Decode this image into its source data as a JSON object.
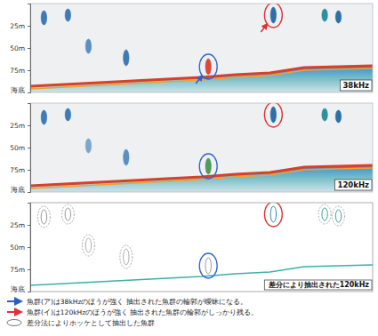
{
  "chart_data": [
    {
      "type": "echogram",
      "title": "38kHz",
      "xlim": [
        0,
        100
      ],
      "ylim": [
        0,
        100
      ],
      "tick_labels": "y",
      "yticks": [
        {
          "value": 25,
          "label": "25m"
        },
        {
          "value": 50,
          "label": "50m"
        },
        {
          "value": 75,
          "label": "75m"
        },
        {
          "value": 100,
          "label": "海底"
        }
      ],
      "x": [
        0,
        10,
        20,
        30,
        40,
        50,
        60,
        70,
        80,
        90,
        100
      ],
      "seabed": [
        93,
        91,
        89,
        87,
        85,
        83,
        80,
        78,
        72,
        71,
        70
      ],
      "schools": [
        {
          "x": 4,
          "top": 8,
          "bottom": 24,
          "color": "#3d7ab8"
        },
        {
          "x": 11,
          "top": 6,
          "bottom": 20,
          "color": "#3d7ab8"
        },
        {
          "x": 17,
          "top": 40,
          "bottom": 56,
          "color": "#5a8fc4"
        },
        {
          "x": 28,
          "top": 52,
          "bottom": 70,
          "color": "#3d7ab8"
        },
        {
          "x": 52,
          "top": 62,
          "bottom": 80,
          "color": "#d84a3a"
        },
        {
          "x": 71,
          "top": 4,
          "bottom": 22,
          "color": "#2f6ea8"
        },
        {
          "x": 86,
          "top": 6,
          "bottom": 20,
          "color": "#2f8f9a"
        },
        {
          "x": 90,
          "top": 8,
          "bottom": 22,
          "color": "#2f6ea8"
        }
      ]
    },
    {
      "type": "echogram",
      "title": "120kHz",
      "xlim": [
        0,
        100
      ],
      "ylim": [
        0,
        100
      ],
      "tick_labels": "y",
      "yticks": [
        {
          "value": 25,
          "label": "25m"
        },
        {
          "value": 50,
          "label": "50m"
        },
        {
          "value": 75,
          "label": "75m"
        },
        {
          "value": 100,
          "label": "海底"
        }
      ],
      "x": [
        0,
        10,
        20,
        30,
        40,
        50,
        60,
        70,
        80,
        90,
        100
      ],
      "seabed": [
        93,
        91,
        89,
        87,
        85,
        83,
        80,
        78,
        72,
        71,
        70
      ],
      "schools": [
        {
          "x": 4,
          "top": 8,
          "bottom": 24,
          "color": "#3d7ab8"
        },
        {
          "x": 11,
          "top": 6,
          "bottom": 20,
          "color": "#3d7ab8"
        },
        {
          "x": 17,
          "top": 40,
          "bottom": 56,
          "color": "#7aa6d0"
        },
        {
          "x": 28,
          "top": 52,
          "bottom": 70,
          "color": "#5a8fc4"
        },
        {
          "x": 52,
          "top": 62,
          "bottom": 80,
          "color": "#4f9a5a"
        },
        {
          "x": 71,
          "top": 4,
          "bottom": 22,
          "color": "#2f6ea8"
        },
        {
          "x": 86,
          "top": 6,
          "bottom": 20,
          "color": "#2f8f9a"
        },
        {
          "x": 90,
          "top": 8,
          "bottom": 22,
          "color": "#2f6ea8"
        }
      ]
    },
    {
      "type": "difference",
      "title": "差分により抽出された120kHz",
      "xlim": [
        0,
        100
      ],
      "ylim": [
        0,
        100
      ],
      "tick_labels": "y",
      "yticks": [
        {
          "value": 25,
          "label": "25m"
        },
        {
          "value": 50,
          "label": "50m"
        },
        {
          "value": 75,
          "label": "75m"
        },
        {
          "value": 100,
          "label": "海底"
        }
      ],
      "x": [
        0,
        10,
        20,
        30,
        40,
        50,
        60,
        70,
        80,
        90,
        100
      ],
      "seabed": [
        93,
        91,
        89,
        87,
        85,
        83,
        80,
        78,
        72,
        71,
        70
      ],
      "schools": [
        {
          "x": 4,
          "top": 8,
          "bottom": 24,
          "color": "#9a9a9a"
        },
        {
          "x": 11,
          "top": 6,
          "bottom": 20,
          "color": "#9a9a9a"
        },
        {
          "x": 17,
          "top": 40,
          "bottom": 56,
          "color": "#b0b0b0"
        },
        {
          "x": 28,
          "top": 52,
          "bottom": 70,
          "color": "#b0b0b0"
        },
        {
          "x": 52,
          "top": 62,
          "bottom": 80,
          "color": "#9a9a9a"
        },
        {
          "x": 71,
          "top": 4,
          "bottom": 22,
          "color": "#2f8f9a"
        },
        {
          "x": 86,
          "top": 6,
          "bottom": 20,
          "color": "#3aa3a0"
        },
        {
          "x": 90,
          "top": 8,
          "bottom": 22,
          "color": "#3aa3a0"
        }
      ]
    }
  ],
  "notes": [
    {
      "text": "魚群(ア)は38kHzのほうが強く 抽出された魚群の輪郭が曖昧になる。",
      "marker": "arrow",
      "color": "#2a5cc8"
    },
    {
      "text": "魚群(イ)は120kHzのほうが強く 抽出された魚群の輪郭がしっかり残る。",
      "marker": "arrow",
      "color": "#e0303a"
    },
    {
      "text": "差分法によりホッケとして抽出した魚群",
      "marker": "ellipse",
      "color": "#555555"
    }
  ]
}
